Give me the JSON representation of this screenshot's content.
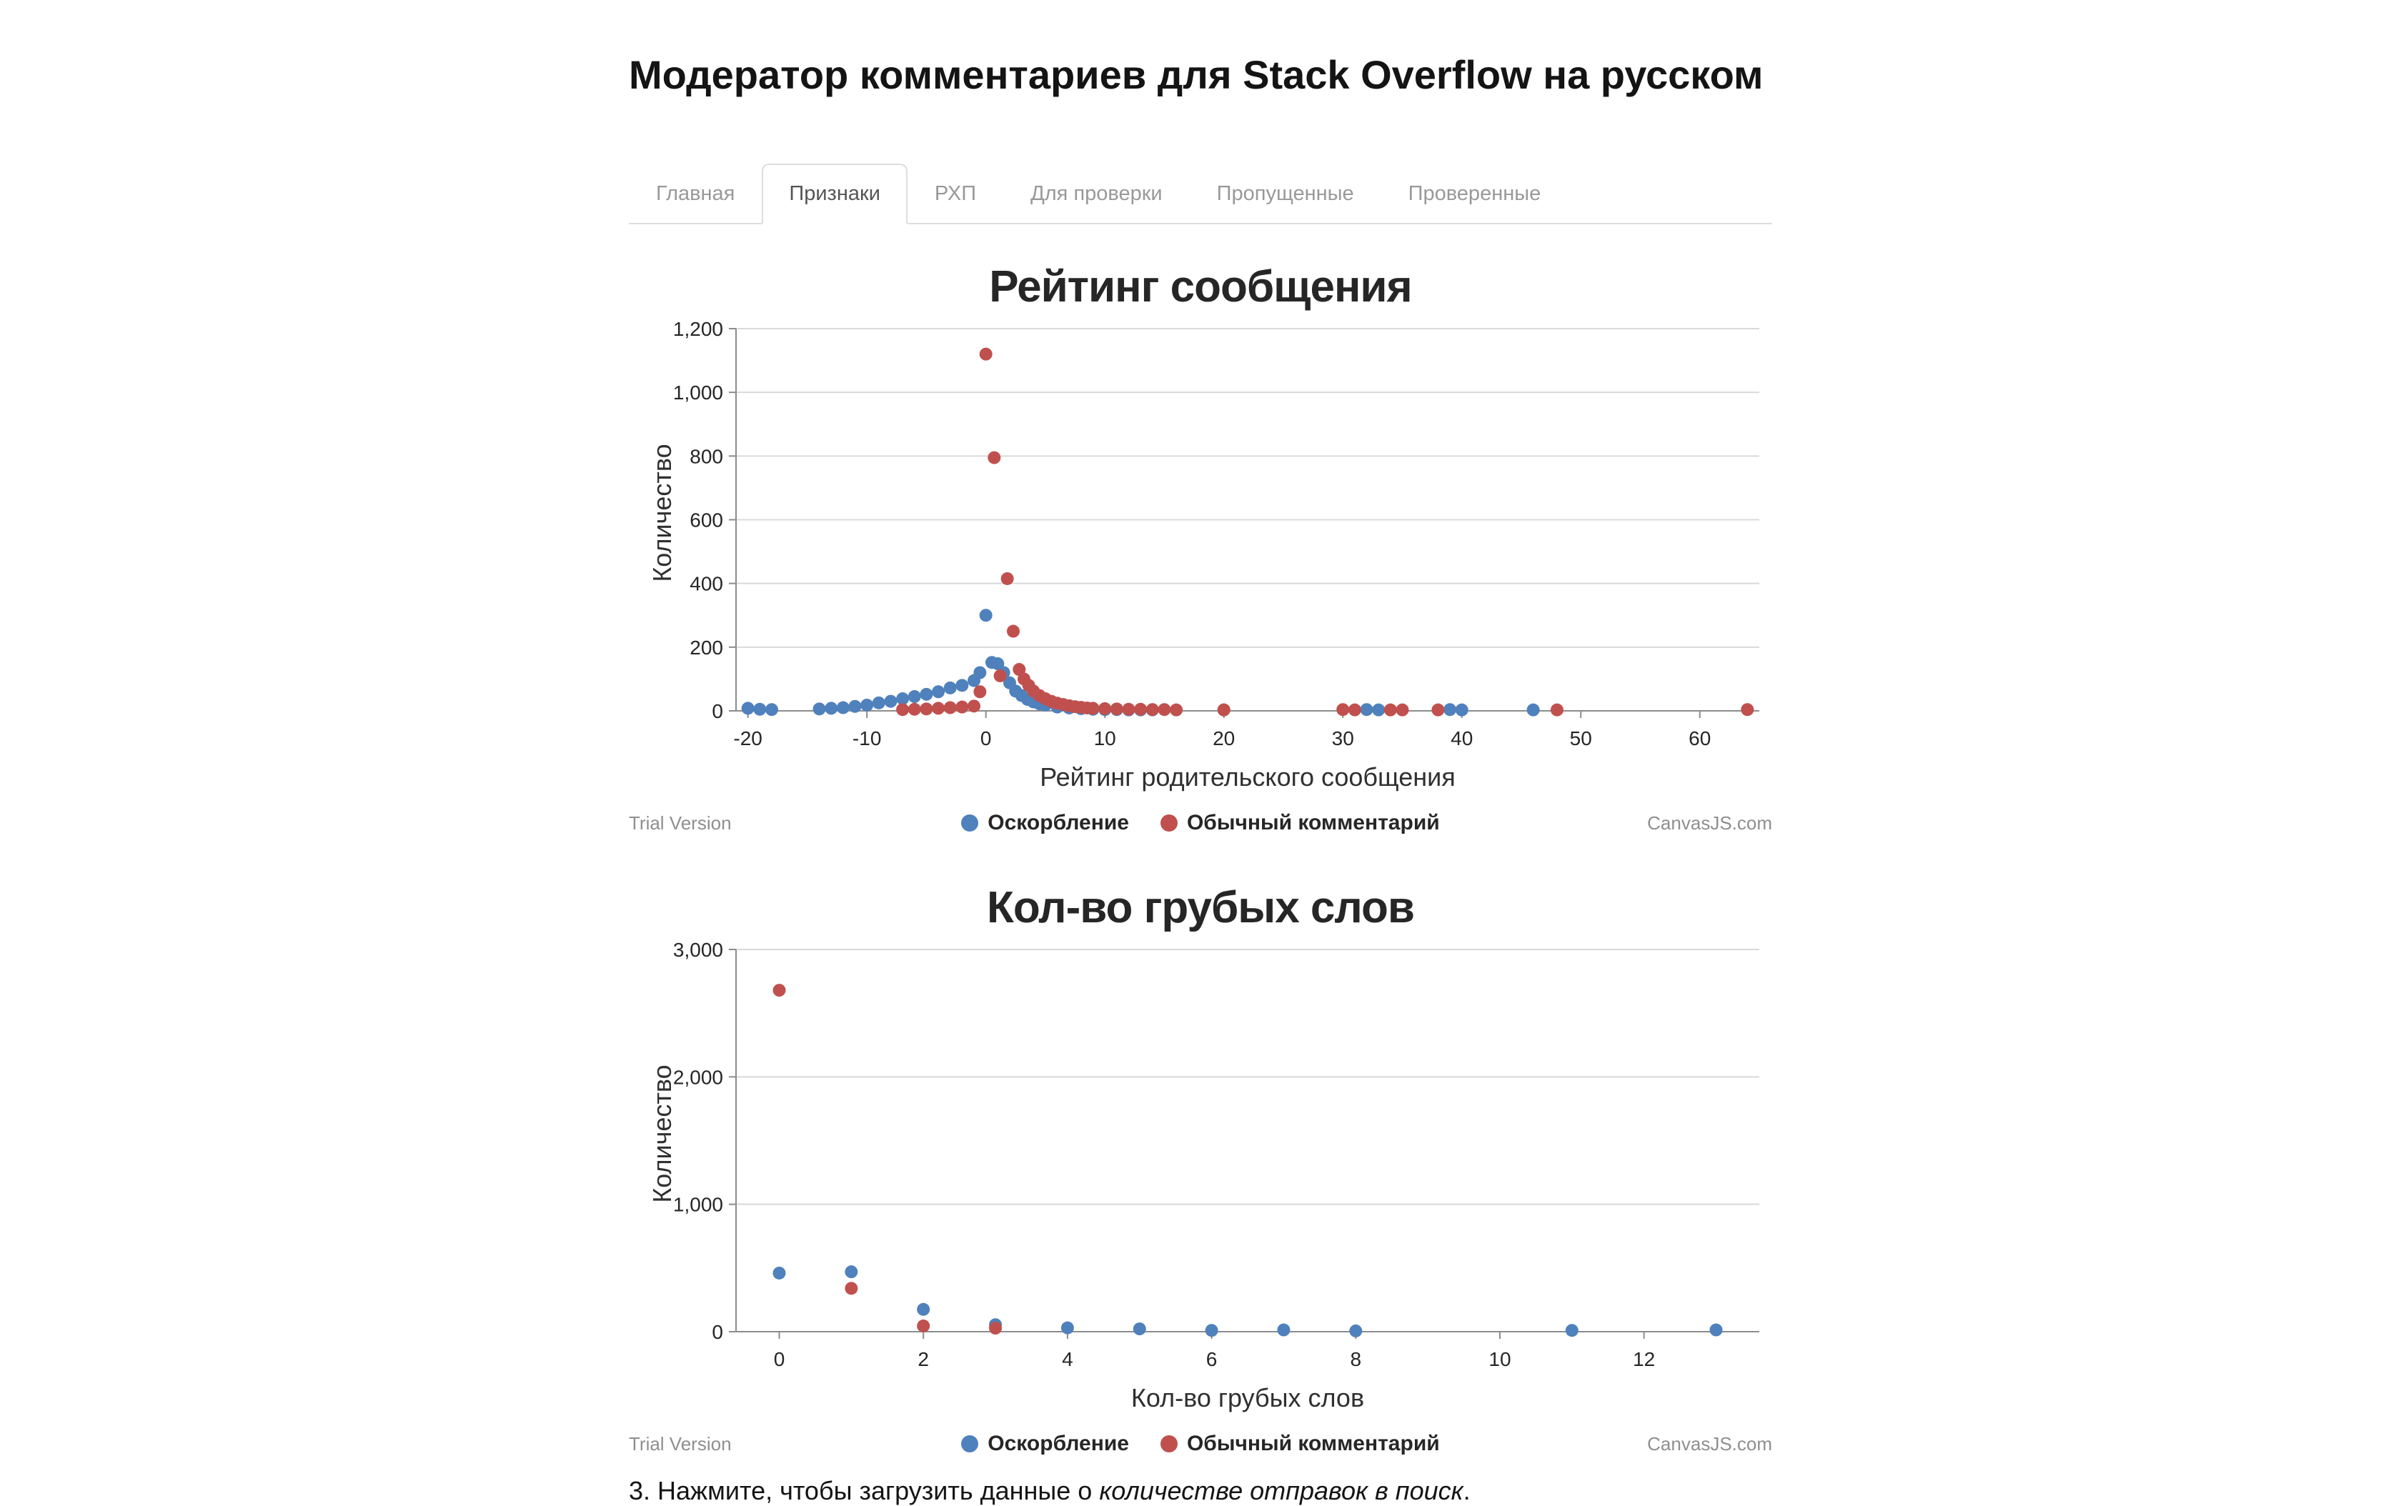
{
  "page": {
    "title": "Модератор комментариев для Stack Overflow на русском"
  },
  "tabs": [
    {
      "label": "Главная",
      "active": false
    },
    {
      "label": "Признаки",
      "active": true
    },
    {
      "label": "РХП",
      "active": false
    },
    {
      "label": "Для проверки",
      "active": false
    },
    {
      "label": "Пропущенные",
      "active": false
    },
    {
      "label": "Проверенные",
      "active": false
    }
  ],
  "branding": {
    "trial": "Trial Version",
    "canvasjs": "CanvasJS.com"
  },
  "note": {
    "prefix": "3. Нажмите, чтобы загрузить данные о ",
    "em": "количестве отправок в поиск",
    "suffix": "."
  },
  "chart_data": [
    {
      "type": "scatter",
      "title": "Рейтинг сообщения",
      "xlabel": "Рейтинг родительского сообщения",
      "ylabel": "Количество",
      "xlim": [
        -21,
        65
      ],
      "ylim": [
        0,
        1200
      ],
      "xticks": [
        -20,
        -10,
        0,
        10,
        20,
        30,
        40,
        50,
        60
      ],
      "yticks": [
        0,
        200,
        400,
        600,
        800,
        1000,
        1200
      ],
      "grid": "horizontal",
      "legend_position": "bottom",
      "series": [
        {
          "name": "Оскорбление",
          "color": "#4F81BC",
          "points": [
            [
              -20,
              8
            ],
            [
              -19,
              5
            ],
            [
              -18,
              4
            ],
            [
              -14,
              6
            ],
            [
              -13,
              8
            ],
            [
              -12,
              10
            ],
            [
              -11,
              14
            ],
            [
              -10,
              18
            ],
            [
              -9,
              25
            ],
            [
              -8,
              30
            ],
            [
              -7,
              38
            ],
            [
              -6,
              45
            ],
            [
              -5,
              52
            ],
            [
              -4,
              60
            ],
            [
              -3,
              72
            ],
            [
              -2,
              80
            ],
            [
              -1,
              95
            ],
            [
              -0.5,
              120
            ],
            [
              0,
              300
            ],
            [
              0.5,
              152
            ],
            [
              1,
              148
            ],
            [
              1.5,
              120
            ],
            [
              2,
              88
            ],
            [
              2.5,
              62
            ],
            [
              3,
              48
            ],
            [
              3.5,
              36
            ],
            [
              4,
              28
            ],
            [
              4.5,
              22
            ],
            [
              5,
              18
            ],
            [
              6,
              12
            ],
            [
              7,
              9
            ],
            [
              8,
              7
            ],
            [
              9,
              5
            ],
            [
              10,
              4
            ],
            [
              11,
              4
            ],
            [
              12,
              3
            ],
            [
              13,
              3
            ],
            [
              14,
              3
            ],
            [
              20,
              3
            ],
            [
              32,
              4
            ],
            [
              33,
              3
            ],
            [
              39,
              4
            ],
            [
              40,
              3
            ],
            [
              46,
              3
            ]
          ]
        },
        {
          "name": "Обычный комментарий",
          "color": "#C0504E",
          "points": [
            [
              -7,
              4
            ],
            [
              -6,
              5
            ],
            [
              -5,
              6
            ],
            [
              -4,
              8
            ],
            [
              -3,
              10
            ],
            [
              -2,
              12
            ],
            [
              -1,
              15
            ],
            [
              -0.5,
              60
            ],
            [
              0,
              1120
            ],
            [
              0.7,
              795
            ],
            [
              1.2,
              110
            ],
            [
              1.8,
              415
            ],
            [
              2.3,
              250
            ],
            [
              2.8,
              130
            ],
            [
              3.2,
              100
            ],
            [
              3.6,
              80
            ],
            [
              4,
              62
            ],
            [
              4.5,
              48
            ],
            [
              5,
              38
            ],
            [
              5.5,
              30
            ],
            [
              6,
              24
            ],
            [
              6.5,
              20
            ],
            [
              7,
              16
            ],
            [
              7.5,
              13
            ],
            [
              8,
              11
            ],
            [
              8.5,
              9
            ],
            [
              9,
              8
            ],
            [
              10,
              7
            ],
            [
              11,
              6
            ],
            [
              12,
              5
            ],
            [
              13,
              5
            ],
            [
              14,
              4
            ],
            [
              15,
              4
            ],
            [
              16,
              3
            ],
            [
              20,
              3
            ],
            [
              30,
              4
            ],
            [
              31,
              3
            ],
            [
              34,
              3
            ],
            [
              35,
              3
            ],
            [
              38,
              3
            ],
            [
              48,
              3
            ],
            [
              64,
              4
            ]
          ]
        }
      ]
    },
    {
      "type": "scatter",
      "title": "Кол-во грубых слов",
      "xlabel": "Кол-во грубых слов",
      "ylabel": "Количество",
      "xlim": [
        -0.6,
        13.6
      ],
      "ylim": [
        0,
        3000
      ],
      "xticks": [
        0,
        2,
        4,
        6,
        8,
        10,
        12
      ],
      "yticks": [
        0,
        1000,
        2000,
        3000
      ],
      "grid": "horizontal",
      "legend_position": "bottom",
      "series": [
        {
          "name": "Оскорбление",
          "color": "#4F81BC",
          "points": [
            [
              0,
              460
            ],
            [
              1,
              470
            ],
            [
              2,
              175
            ],
            [
              3,
              55
            ],
            [
              4,
              30
            ],
            [
              5,
              22
            ],
            [
              6,
              10
            ],
            [
              7,
              14
            ],
            [
              8,
              6
            ],
            [
              11,
              10
            ],
            [
              13,
              14
            ]
          ]
        },
        {
          "name": "Обычный комментарий",
          "color": "#C0504E",
          "points": [
            [
              0,
              2680
            ],
            [
              1,
              340
            ],
            [
              2,
              45
            ],
            [
              3,
              28
            ]
          ]
        }
      ]
    }
  ]
}
